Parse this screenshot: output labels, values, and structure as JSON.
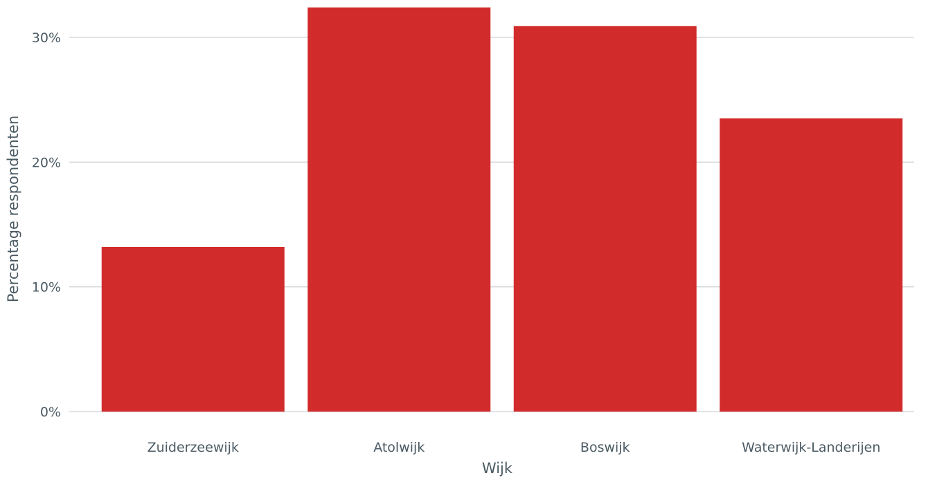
{
  "chart_data": {
    "type": "bar",
    "categories": [
      "Zuiderzeewijk",
      "Atolwijk",
      "Boswijk",
      "Waterwijk-Landerijen"
    ],
    "values": [
      13.2,
      32.4,
      30.9,
      23.5
    ],
    "yticks": [
      0,
      10,
      20,
      30
    ],
    "tick_format": "{v}%",
    "ylim": [
      0,
      33
    ],
    "xlabel": "Wijk",
    "ylabel": "Percentage respondenten",
    "bar_color": "#d22b2b",
    "grid": "horizontal",
    "legend": "none"
  }
}
